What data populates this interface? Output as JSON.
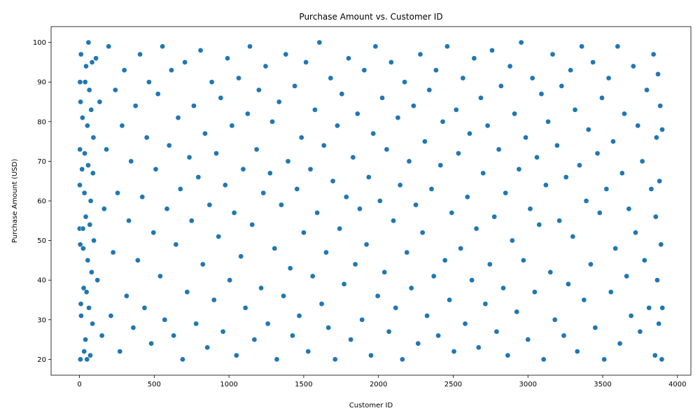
{
  "chart_data": {
    "type": "scatter",
    "title": "Purchase Amount vs. Customer ID",
    "xlabel": "Customer ID",
    "ylabel": "Purchase Amount (USD)",
    "xlim": [
      -190,
      4090
    ],
    "ylim": [
      16,
      104
    ],
    "x_ticks": [
      0,
      500,
      1000,
      1500,
      2000,
      2500,
      3000,
      3500,
      4000
    ],
    "y_ticks": [
      20,
      30,
      40,
      50,
      60,
      70,
      80,
      90,
      100
    ],
    "x_tick_labels": [
      "0",
      "500",
      "1000",
      "1500",
      "2000",
      "2500",
      "3000",
      "3500",
      "4000"
    ],
    "y_tick_labels": [
      "20",
      "30",
      "40",
      "50",
      "60",
      "70",
      "80",
      "90",
      "100"
    ],
    "series": [
      {
        "color": "#1f77b4",
        "points": [
          [
            1,
            53
          ],
          [
            2,
            64
          ],
          [
            3,
            73
          ],
          [
            4,
            90
          ],
          [
            5,
            49
          ],
          [
            6,
            20
          ],
          [
            7,
            85
          ],
          [
            9,
            34
          ],
          [
            10,
            97
          ],
          [
            11,
            31
          ],
          [
            17,
            68
          ],
          [
            20,
            81
          ],
          [
            23,
            53
          ],
          [
            25,
            48
          ],
          [
            28,
            38
          ],
          [
            31,
            22
          ],
          [
            33,
            62
          ],
          [
            35,
            72
          ],
          [
            38,
            90
          ],
          [
            40,
            25
          ],
          [
            42,
            56
          ],
          [
            44,
            94
          ],
          [
            47,
            37
          ],
          [
            50,
            20
          ],
          [
            53,
            79
          ],
          [
            55,
            45
          ],
          [
            58,
            69
          ],
          [
            60,
            100
          ],
          [
            63,
            33
          ],
          [
            66,
            88
          ],
          [
            69,
            54
          ],
          [
            72,
            21
          ],
          [
            75,
            60
          ],
          [
            78,
            83
          ],
          [
            81,
            42
          ],
          [
            84,
            95
          ],
          [
            87,
            29
          ],
          [
            90,
            67
          ],
          [
            93,
            76
          ],
          [
            96,
            50
          ],
          [
            110,
            96
          ],
          [
            120,
            40
          ],
          [
            135,
            85
          ],
          [
            150,
            26
          ],
          [
            165,
            58
          ],
          [
            180,
            73
          ],
          [
            195,
            99
          ],
          [
            210,
            31
          ],
          [
            225,
            47
          ],
          [
            240,
            88
          ],
          [
            255,
            62
          ],
          [
            270,
            22
          ],
          [
            285,
            79
          ],
          [
            300,
            93
          ],
          [
            315,
            36
          ],
          [
            330,
            55
          ],
          [
            345,
            70
          ],
          [
            360,
            28
          ],
          [
            375,
            84
          ],
          [
            390,
            45
          ],
          [
            405,
            97
          ],
          [
            420,
            61
          ],
          [
            435,
            33
          ],
          [
            450,
            76
          ],
          [
            465,
            90
          ],
          [
            480,
            24
          ],
          [
            495,
            52
          ],
          [
            510,
            68
          ],
          [
            525,
            87
          ],
          [
            540,
            41
          ],
          [
            555,
            99
          ],
          [
            570,
            30
          ],
          [
            585,
            58
          ],
          [
            600,
            74
          ],
          [
            615,
            93
          ],
          [
            630,
            26
          ],
          [
            645,
            49
          ],
          [
            660,
            81
          ],
          [
            675,
            63
          ],
          [
            690,
            20
          ],
          [
            705,
            95
          ],
          [
            720,
            37
          ],
          [
            735,
            71
          ],
          [
            750,
            55
          ],
          [
            765,
            84
          ],
          [
            780,
            29
          ],
          [
            795,
            66
          ],
          [
            810,
            98
          ],
          [
            825,
            44
          ],
          [
            840,
            77
          ],
          [
            855,
            23
          ],
          [
            870,
            59
          ],
          [
            885,
            90
          ],
          [
            900,
            35
          ],
          [
            915,
            72
          ],
          [
            930,
            51
          ],
          [
            945,
            86
          ],
          [
            960,
            27
          ],
          [
            975,
            64
          ],
          [
            990,
            96
          ],
          [
            1005,
            40
          ],
          [
            1020,
            79
          ],
          [
            1035,
            57
          ],
          [
            1050,
            21
          ],
          [
            1065,
            91
          ],
          [
            1080,
            46
          ],
          [
            1095,
            68
          ],
          [
            1110,
            33
          ],
          [
            1125,
            82
          ],
          [
            1140,
            99
          ],
          [
            1155,
            54
          ],
          [
            1170,
            25
          ],
          [
            1185,
            73
          ],
          [
            1200,
            88
          ],
          [
            1215,
            38
          ],
          [
            1230,
            62
          ],
          [
            1245,
            94
          ],
          [
            1260,
            29
          ],
          [
            1275,
            67
          ],
          [
            1290,
            80
          ],
          [
            1305,
            48
          ],
          [
            1320,
            20
          ],
          [
            1335,
            85
          ],
          [
            1350,
            59
          ],
          [
            1365,
            36
          ],
          [
            1380,
            97
          ],
          [
            1395,
            70
          ],
          [
            1410,
            43
          ],
          [
            1425,
            26
          ],
          [
            1440,
            89
          ],
          [
            1455,
            63
          ],
          [
            1470,
            31
          ],
          [
            1485,
            76
          ],
          [
            1500,
            52
          ],
          [
            1515,
            95
          ],
          [
            1530,
            22
          ],
          [
            1545,
            68
          ],
          [
            1560,
            41
          ],
          [
            1575,
            83
          ],
          [
            1590,
            57
          ],
          [
            1605,
            100
          ],
          [
            1620,
            34
          ],
          [
            1635,
            74
          ],
          [
            1650,
            47
          ],
          [
            1665,
            28
          ],
          [
            1680,
            91
          ],
          [
            1695,
            65
          ],
          [
            1710,
            20
          ],
          [
            1725,
            79
          ],
          [
            1740,
            53
          ],
          [
            1755,
            87
          ],
          [
            1770,
            39
          ],
          [
            1785,
            61
          ],
          [
            1800,
            96
          ],
          [
            1815,
            25
          ],
          [
            1830,
            71
          ],
          [
            1845,
            44
          ],
          [
            1860,
            82
          ],
          [
            1875,
            58
          ],
          [
            1890,
            30
          ],
          [
            1905,
            93
          ],
          [
            1920,
            49
          ],
          [
            1935,
            66
          ],
          [
            1950,
            21
          ],
          [
            1965,
            77
          ],
          [
            1980,
            99
          ],
          [
            1995,
            36
          ],
          [
            2010,
            60
          ],
          [
            2025,
            86
          ],
          [
            2040,
            42
          ],
          [
            2055,
            73
          ],
          [
            2070,
            27
          ],
          [
            2085,
            95
          ],
          [
            2100,
            55
          ],
          [
            2115,
            33
          ],
          [
            2130,
            81
          ],
          [
            2145,
            64
          ],
          [
            2160,
            20
          ],
          [
            2175,
            90
          ],
          [
            2190,
            47
          ],
          [
            2205,
            70
          ],
          [
            2220,
            38
          ],
          [
            2235,
            84
          ],
          [
            2250,
            59
          ],
          [
            2265,
            24
          ],
          [
            2280,
            97
          ],
          [
            2295,
            52
          ],
          [
            2310,
            75
          ],
          [
            2325,
            31
          ],
          [
            2340,
            88
          ],
          [
            2355,
            63
          ],
          [
            2370,
            41
          ],
          [
            2385,
            93
          ],
          [
            2400,
            26
          ],
          [
            2415,
            69
          ],
          [
            2430,
            80
          ],
          [
            2445,
            45
          ],
          [
            2460,
            99
          ],
          [
            2475,
            35
          ],
          [
            2490,
            57
          ],
          [
            2505,
            22
          ],
          [
            2520,
            83
          ],
          [
            2535,
            72
          ],
          [
            2550,
            48
          ],
          [
            2565,
            91
          ],
          [
            2580,
            29
          ],
          [
            2595,
            61
          ],
          [
            2610,
            77
          ],
          [
            2625,
            40
          ],
          [
            2640,
            96
          ],
          [
            2655,
            53
          ],
          [
            2670,
            23
          ],
          [
            2685,
            86
          ],
          [
            2700,
            67
          ],
          [
            2715,
            34
          ],
          [
            2730,
            79
          ],
          [
            2745,
            44
          ],
          [
            2760,
            98
          ],
          [
            2775,
            56
          ],
          [
            2790,
            27
          ],
          [
            2805,
            73
          ],
          [
            2820,
            89
          ],
          [
            2835,
            38
          ],
          [
            2850,
            62
          ],
          [
            2865,
            21
          ],
          [
            2880,
            94
          ],
          [
            2895,
            50
          ],
          [
            2910,
            82
          ],
          [
            2925,
            32
          ],
          [
            2940,
            68
          ],
          [
            2955,
            100
          ],
          [
            2970,
            45
          ],
          [
            2985,
            76
          ],
          [
            3000,
            25
          ],
          [
            3015,
            58
          ],
          [
            3030,
            91
          ],
          [
            3045,
            37
          ],
          [
            3060,
            71
          ],
          [
            3075,
            54
          ],
          [
            3090,
            87
          ],
          [
            3105,
            20
          ],
          [
            3120,
            64
          ],
          [
            3135,
            80
          ],
          [
            3150,
            42
          ],
          [
            3165,
            97
          ],
          [
            3180,
            30
          ],
          [
            3195,
            74
          ],
          [
            3210,
            55
          ],
          [
            3225,
            89
          ],
          [
            3240,
            26
          ],
          [
            3255,
            66
          ],
          [
            3270,
            39
          ],
          [
            3285,
            93
          ],
          [
            3300,
            51
          ],
          [
            3315,
            83
          ],
          [
            3330,
            22
          ],
          [
            3345,
            69
          ],
          [
            3360,
            99
          ],
          [
            3375,
            35
          ],
          [
            3390,
            60
          ],
          [
            3405,
            78
          ],
          [
            3420,
            44
          ],
          [
            3435,
            95
          ],
          [
            3450,
            28
          ],
          [
            3465,
            72
          ],
          [
            3480,
            57
          ],
          [
            3495,
            86
          ],
          [
            3510,
            20
          ],
          [
            3525,
            63
          ],
          [
            3540,
            91
          ],
          [
            3555,
            37
          ],
          [
            3570,
            75
          ],
          [
            3585,
            48
          ],
          [
            3600,
            99
          ],
          [
            3615,
            24
          ],
          [
            3630,
            67
          ],
          [
            3645,
            82
          ],
          [
            3660,
            41
          ],
          [
            3675,
            58
          ],
          [
            3690,
            31
          ],
          [
            3705,
            94
          ],
          [
            3720,
            52
          ],
          [
            3735,
            79
          ],
          [
            3750,
            27
          ],
          [
            3765,
            70
          ],
          [
            3780,
            45
          ],
          [
            3795,
            88
          ],
          [
            3810,
            33
          ],
          [
            3825,
            63
          ],
          [
            3840,
            97
          ],
          [
            3850,
            21
          ],
          [
            3855,
            56
          ],
          [
            3860,
            76
          ],
          [
            3865,
            40
          ],
          [
            3870,
            92
          ],
          [
            3875,
            29
          ],
          [
            3880,
            65
          ],
          [
            3885,
            84
          ],
          [
            3890,
            49
          ],
          [
            3895,
            20
          ],
          [
            3898,
            78
          ],
          [
            3899,
            33
          ]
        ]
      }
    ]
  }
}
